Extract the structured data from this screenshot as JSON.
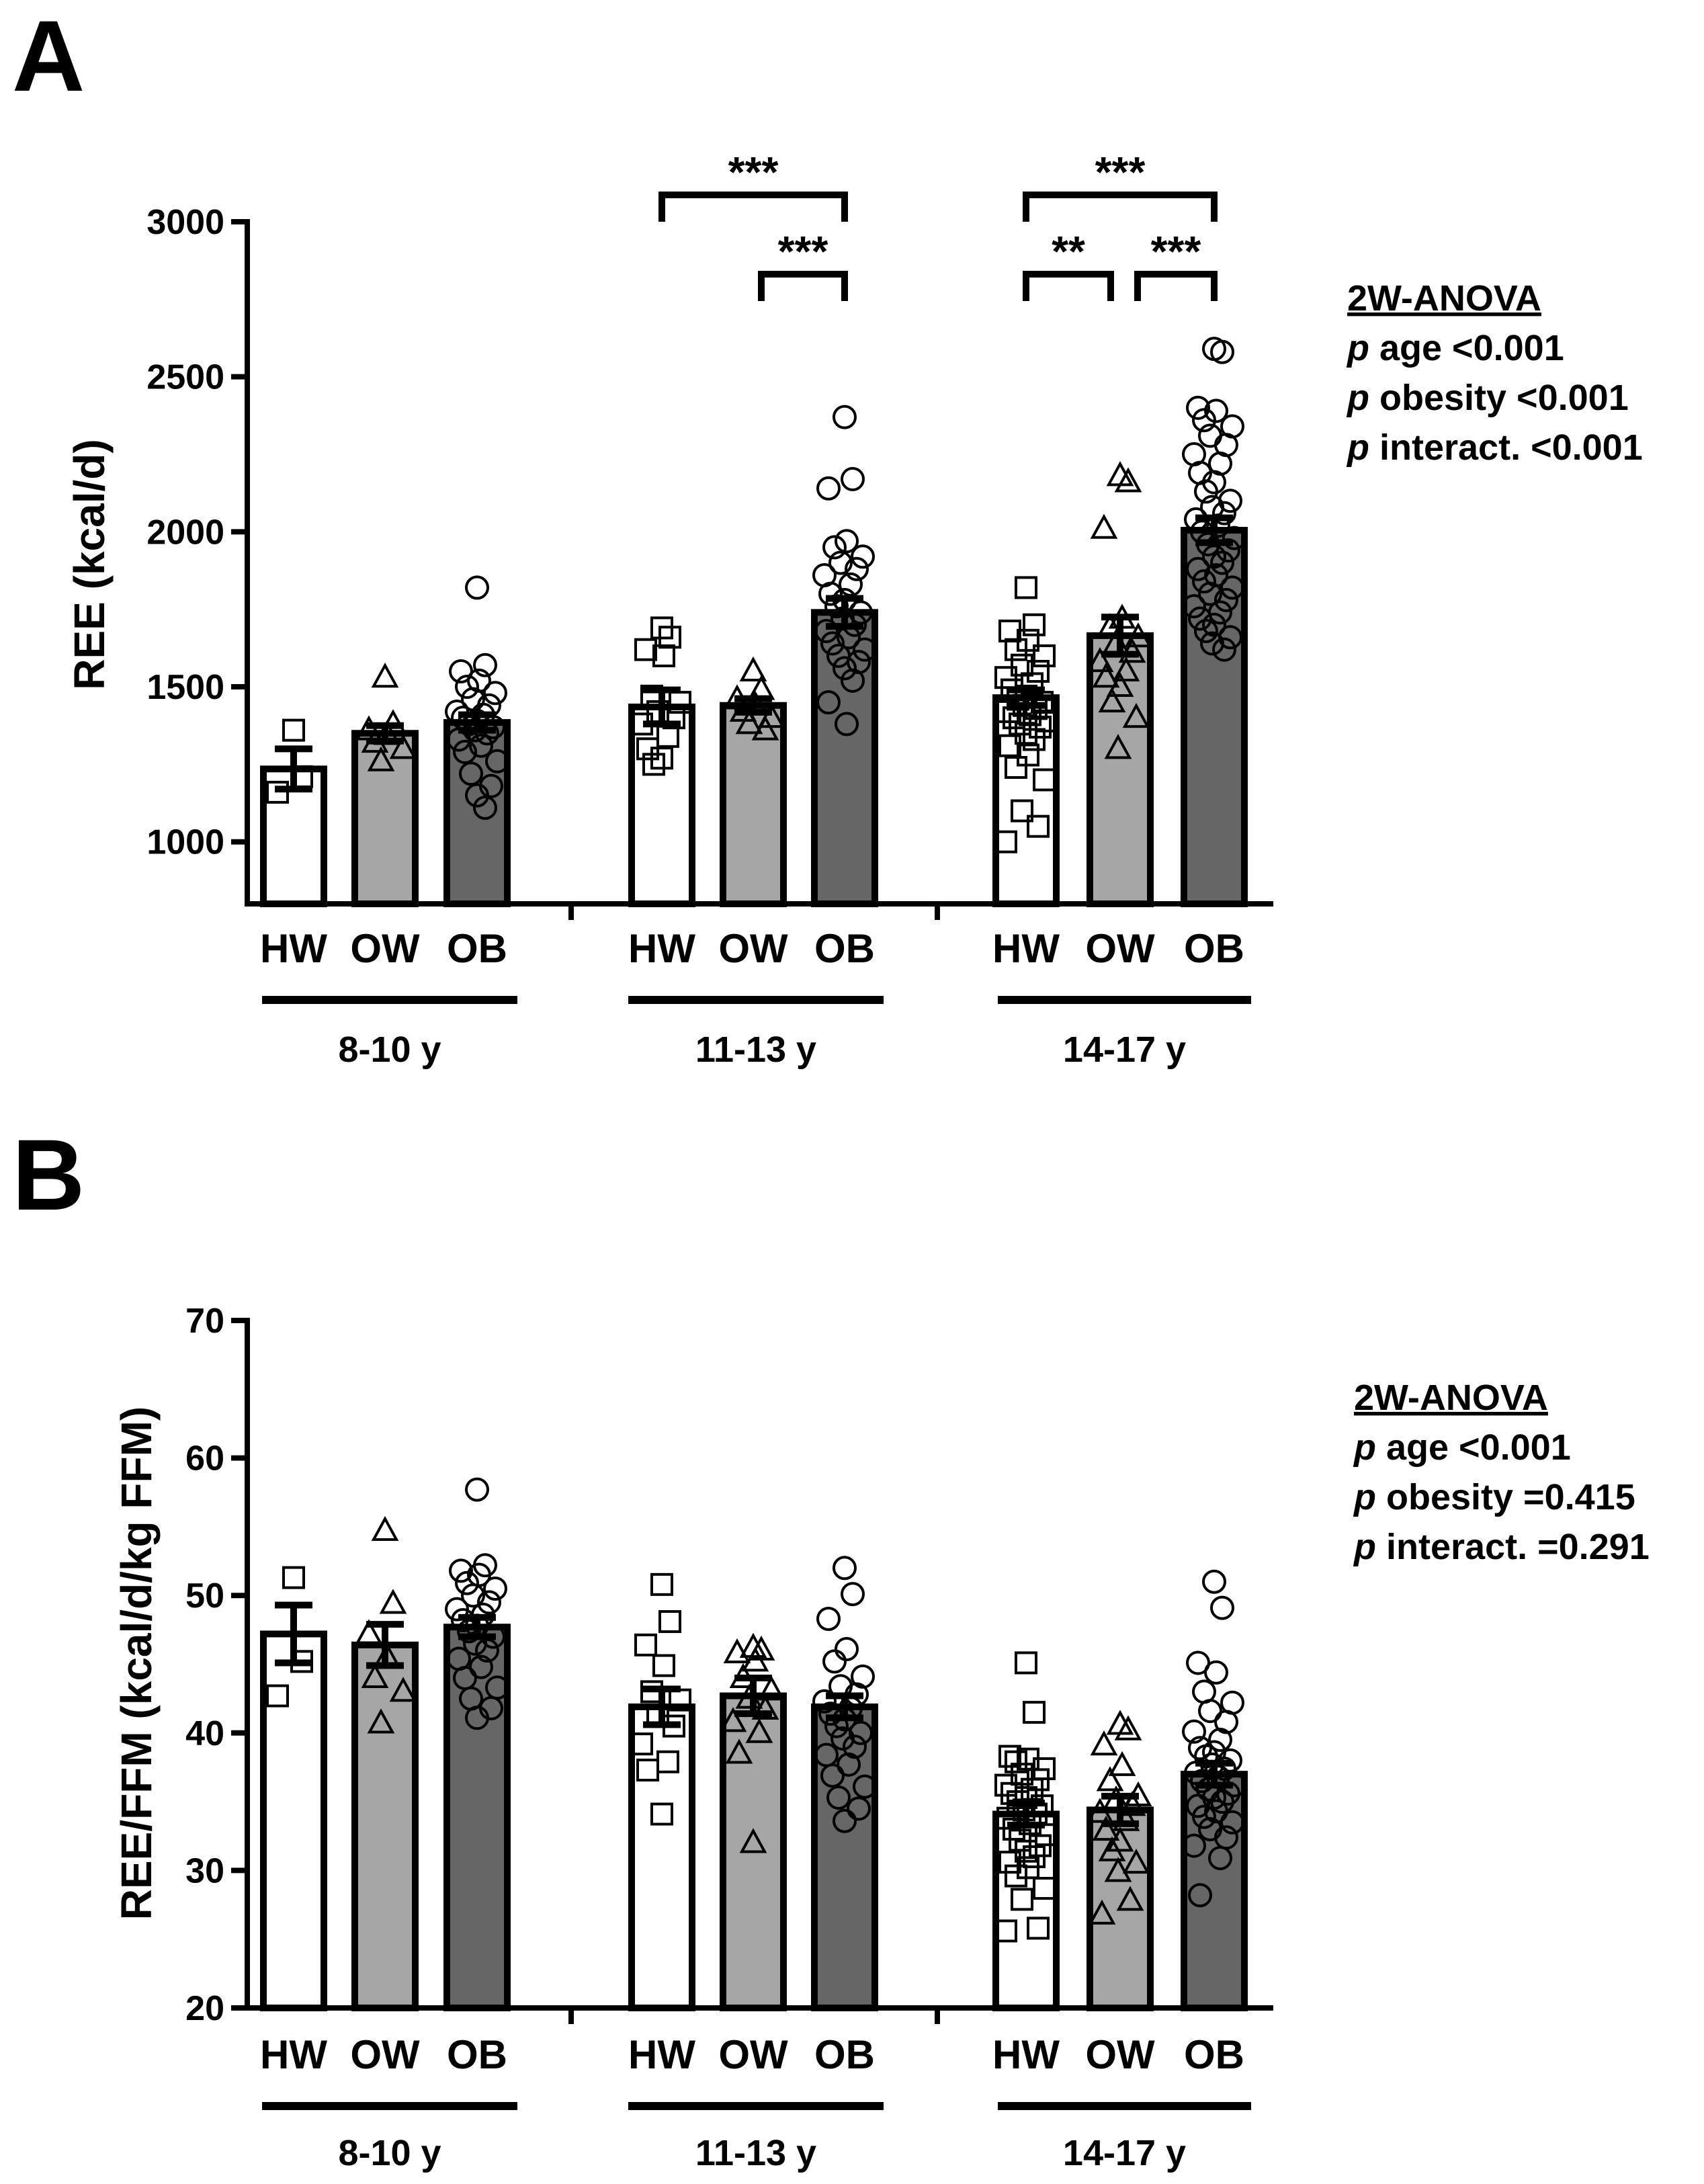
{
  "figure": {
    "panels": [
      {
        "letter": "A"
      },
      {
        "letter": "B"
      }
    ]
  },
  "chart_data": [
    {
      "panel": "A",
      "type": "bar",
      "title": "",
      "ylabel": "REE (kcal/d)",
      "xlabel": "",
      "ylim": [
        800,
        3000
      ],
      "yticks": [
        1000,
        1500,
        2000,
        2500,
        3000
      ],
      "categories": [
        "HW",
        "OW",
        "OB",
        "HW",
        "OW",
        "OB",
        "HW",
        "OW",
        "OB"
      ],
      "groups": [
        {
          "label": "8-10 y",
          "categories": [
            "HW",
            "OW",
            "OB"
          ]
        },
        {
          "label": "11-13 y",
          "categories": [
            "HW",
            "OW",
            "OB"
          ]
        },
        {
          "label": "14-17 y",
          "categories": [
            "HW",
            "OW",
            "OB"
          ]
        }
      ],
      "bar_colors": {
        "HW": "#ffffff",
        "OW": "#a6a6a6",
        "OB": "#666666"
      },
      "markers": {
        "HW": "square",
        "OW": "triangle",
        "OB": "circle"
      },
      "values": [
        1235,
        1350,
        1385,
        1435,
        1440,
        1740,
        1465,
        1665,
        2005
      ],
      "errors": [
        65,
        25,
        25,
        55,
        22,
        45,
        25,
        60,
        40
      ],
      "points": [
        [
          1360,
          1210,
          1160
        ],
        [
          1530,
          1380,
          1360,
          1345,
          1320,
          1300,
          1260
        ],
        [
          1820,
          1570,
          1550,
          1520,
          1500,
          1480,
          1460,
          1440,
          1420,
          1410,
          1400,
          1390,
          1380,
          1370,
          1360,
          1350,
          1330,
          1310,
          1290,
          1260,
          1220,
          1180,
          1150,
          1110
        ],
        [
          1690,
          1660,
          1620,
          1600,
          1470,
          1450,
          1420,
          1400,
          1380,
          1340,
          1300,
          1270,
          1250
        ],
        [
          1550,
          1490,
          1460,
          1440,
          1420,
          1400,
          1380,
          1360
        ],
        [
          2370,
          2170,
          2140,
          1970,
          1950,
          1920,
          1900,
          1880,
          1860,
          1830,
          1800,
          1780,
          1760,
          1740,
          1720,
          1700,
          1680,
          1660,
          1640,
          1620,
          1600,
          1580,
          1560,
          1520,
          1450,
          1380
        ],
        [
          1820,
          1700,
          1680,
          1650,
          1620,
          1600,
          1570,
          1550,
          1530,
          1510,
          1490,
          1470,
          1460,
          1450,
          1440,
          1430,
          1420,
          1410,
          1400,
          1390,
          1380,
          1370,
          1350,
          1330,
          1310,
          1280,
          1240,
          1200,
          1100,
          1050,
          1000
        ],
        [
          2180,
          2160,
          2010,
          1720,
          1690,
          1660,
          1640,
          1610,
          1580,
          1550,
          1530,
          1500,
          1450,
          1400,
          1300
        ],
        [
          2590,
          2580,
          2400,
          2390,
          2360,
          2340,
          2310,
          2280,
          2250,
          2220,
          2190,
          2160,
          2130,
          2100,
          2080,
          2060,
          2040,
          2020,
          2000,
          1980,
          1960,
          1940,
          1920,
          1900,
          1880,
          1860,
          1840,
          1820,
          1800,
          1780,
          1760,
          1740,
          1720,
          1700,
          1680,
          1660,
          1640,
          1620
        ]
      ],
      "significance": [
        {
          "from": 3,
          "to": 5,
          "level": 0,
          "label": "***"
        },
        {
          "from": 4,
          "to": 5,
          "level": 1,
          "label": "***"
        },
        {
          "from": 6,
          "to": 8,
          "level": 0,
          "label": "***"
        },
        {
          "from": 6,
          "to": 7,
          "level": 1,
          "label": "**"
        },
        {
          "from": 7,
          "to": 8,
          "level": 1,
          "label": "***"
        }
      ],
      "stats": {
        "title": "2W-ANOVA",
        "lines": [
          {
            "p": "p",
            "text": " age <0.001"
          },
          {
            "p": "p",
            "text": " obesity <0.001"
          },
          {
            "p": "p",
            "text": " interact. <0.001"
          }
        ]
      }
    },
    {
      "panel": "B",
      "type": "bar",
      "title": "",
      "ylabel": "REE/FFM (kcal/d/kg FFM)",
      "xlabel": "",
      "ylim": [
        20,
        70
      ],
      "yticks": [
        20,
        30,
        40,
        50,
        60,
        70
      ],
      "categories": [
        "HW",
        "OW",
        "OB",
        "HW",
        "OW",
        "OB",
        "HW",
        "OW",
        "OB"
      ],
      "groups": [
        {
          "label": "8-10 y",
          "categories": [
            "HW",
            "OW",
            "OB"
          ]
        },
        {
          "label": "11-13 y",
          "categories": [
            "HW",
            "OW",
            "OB"
          ]
        },
        {
          "label": "14-17 y",
          "categories": [
            "HW",
            "OW",
            "OB"
          ]
        }
      ],
      "bar_colors": {
        "HW": "#ffffff",
        "OW": "#a6a6a6",
        "OB": "#666666"
      },
      "markers": {
        "HW": "square",
        "OW": "triangle",
        "OB": "circle"
      },
      "values": [
        47.2,
        46.4,
        47.7,
        41.9,
        42.7,
        41.9,
        34.1,
        34.4,
        37.0
      ],
      "errors": [
        2.1,
        1.5,
        0.7,
        1.3,
        1.3,
        0.8,
        0.8,
        1.0,
        0.8
      ],
      "points": [
        [
          51.3,
          45.2,
          42.7
        ],
        [
          54.7,
          49.4,
          47.2,
          45.5,
          44.0,
          43.0,
          40.7
        ],
        [
          57.7,
          52.2,
          51.8,
          51.5,
          50.9,
          50.5,
          50.0,
          49.5,
          49.0,
          48.6,
          48.2,
          47.8,
          47.4,
          47.0,
          46.5,
          46.0,
          45.4,
          44.8,
          44.0,
          43.3,
          42.5,
          41.8,
          41.1
        ],
        [
          50.8,
          48.1,
          46.4,
          44.9,
          43.0,
          42.4,
          41.2,
          40.5,
          39.2,
          37.9,
          37.3,
          34.1
        ],
        [
          46.2,
          46.0,
          45.8,
          45.2,
          44.0,
          43.1,
          42.5,
          41.7,
          40.8,
          40.0,
          38.5,
          32.0
        ],
        [
          52.0,
          50.1,
          48.3,
          46.1,
          45.2,
          44.1,
          43.4,
          42.8,
          42.3,
          41.8,
          41.4,
          41.0,
          40.5,
          40.0,
          39.6,
          39.0,
          38.4,
          37.7,
          36.9,
          36.1,
          35.3,
          34.5,
          33.6
        ],
        [
          45.1,
          41.5,
          38.3,
          38.1,
          37.9,
          37.4,
          37.0,
          36.6,
          36.2,
          35.9,
          35.6,
          35.3,
          35.0,
          34.7,
          34.4,
          34.1,
          33.8,
          33.4,
          33.0,
          32.6,
          32.2,
          31.8,
          31.4,
          31.0,
          30.6,
          30.2,
          29.6,
          28.7,
          27.9,
          25.8,
          25.6
        ],
        [
          40.6,
          40.2,
          39.1,
          37.6,
          36.5,
          35.4,
          35.1,
          34.7,
          34.2,
          33.6,
          32.9,
          32.1,
          31.4,
          30.5,
          29.9,
          27.8,
          26.8
        ],
        [
          51.0,
          49.1,
          45.1,
          44.4,
          43.0,
          42.2,
          41.6,
          40.8,
          40.1,
          39.5,
          38.9,
          38.6,
          38.3,
          38.0,
          37.7,
          37.4,
          37.1,
          36.8,
          36.5,
          36.2,
          35.9,
          35.6,
          35.3,
          35.0,
          34.7,
          34.3,
          33.9,
          33.5,
          33.0,
          32.4,
          31.8,
          30.9,
          28.2
        ]
      ],
      "significance": [],
      "stats": {
        "title": "2W-ANOVA",
        "lines": [
          {
            "p": "p",
            "text": " age <0.001"
          },
          {
            "p": "p",
            "text": " obesity =0.415"
          },
          {
            "p": "p",
            "text": " interact. =0.291"
          }
        ]
      }
    }
  ]
}
